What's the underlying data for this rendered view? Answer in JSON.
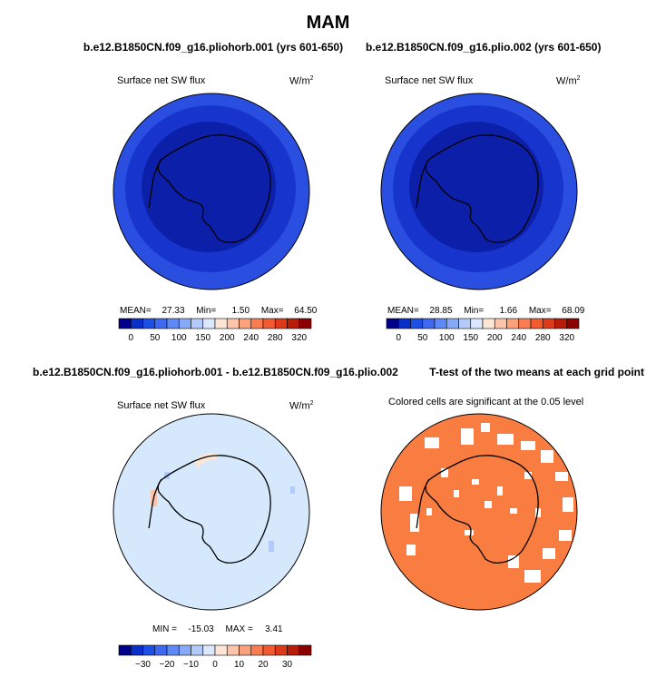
{
  "title": "MAM",
  "panels": [
    {
      "case": "b.e12.B1850CN.f09_g16.pliohorb.001 (yrs 601-650)",
      "variable": "Surface net SW flux",
      "units_base": "W/m",
      "units_exp": "2",
      "stats": {
        "mean_label": "MEAN=",
        "mean": "27.33",
        "min_label": "Min=",
        "min": "1.50",
        "max_label": "Max=",
        "max": "64.50"
      },
      "colorbar": {
        "ticks": [
          "0",
          "50",
          "100",
          "150",
          "200",
          "240",
          "280",
          "320"
        ]
      }
    },
    {
      "case": "b.e12.B1850CN.f09_g16.plio.002 (yrs 601-650)",
      "variable": "Surface net SW flux",
      "units_base": "W/m",
      "units_exp": "2",
      "stats": {
        "mean_label": "MEAN=",
        "mean": "28.85",
        "min_label": "Min=",
        "min": "1.66",
        "max_label": "Max=",
        "max": "68.09"
      },
      "colorbar": {
        "ticks": [
          "0",
          "50",
          "100",
          "150",
          "200",
          "240",
          "280",
          "320"
        ]
      }
    },
    {
      "case": "b.e12.B1850CN.f09_g16.pliohorb.001 - b.e12.B1850CN.f09_g16.plio.002",
      "variable": "Surface net SW flux",
      "units_base": "W/m",
      "units_exp": "2",
      "stats": {
        "min_label": "MIN =",
        "min": "-15.03",
        "max_label": "MAX =",
        "max": "3.41"
      },
      "colorbar": {
        "ticks": [
          "−30",
          "−20",
          "−10",
          "0",
          "10",
          "20",
          "30"
        ]
      }
    },
    {
      "case": "T-test of the two means at each grid point",
      "subtitle": "Colored cells are significant at the 0.05 level"
    }
  ],
  "colors": {
    "abs_scale": [
      "#00008b",
      "#0a2fc8",
      "#1d4fe6",
      "#3d6af0",
      "#5e88f5",
      "#87aaf8",
      "#b3cafb",
      "#dbe8fd",
      "#fde6d6",
      "#fcc5ab",
      "#fba27c",
      "#f97d51",
      "#f25a2f",
      "#dc3a18",
      "#b71c08",
      "#8b0000"
    ],
    "diff_scale": [
      "#00008b",
      "#0a2fc8",
      "#1d4fe6",
      "#3d6af0",
      "#5e88f5",
      "#87aaf8",
      "#b3cafb",
      "#dbe8fd",
      "#fde6d6",
      "#fcc5ab",
      "#fba27c",
      "#f97d51",
      "#f25a2f",
      "#dc3a18",
      "#b71c08",
      "#8b0000"
    ],
    "outer_ring": "#2a4fe0",
    "middle_ring": "#1735cc",
    "inner_core": "#0c1fa8",
    "diff_background": "#d6e8fc",
    "ttest_fill": "#f97d41"
  }
}
